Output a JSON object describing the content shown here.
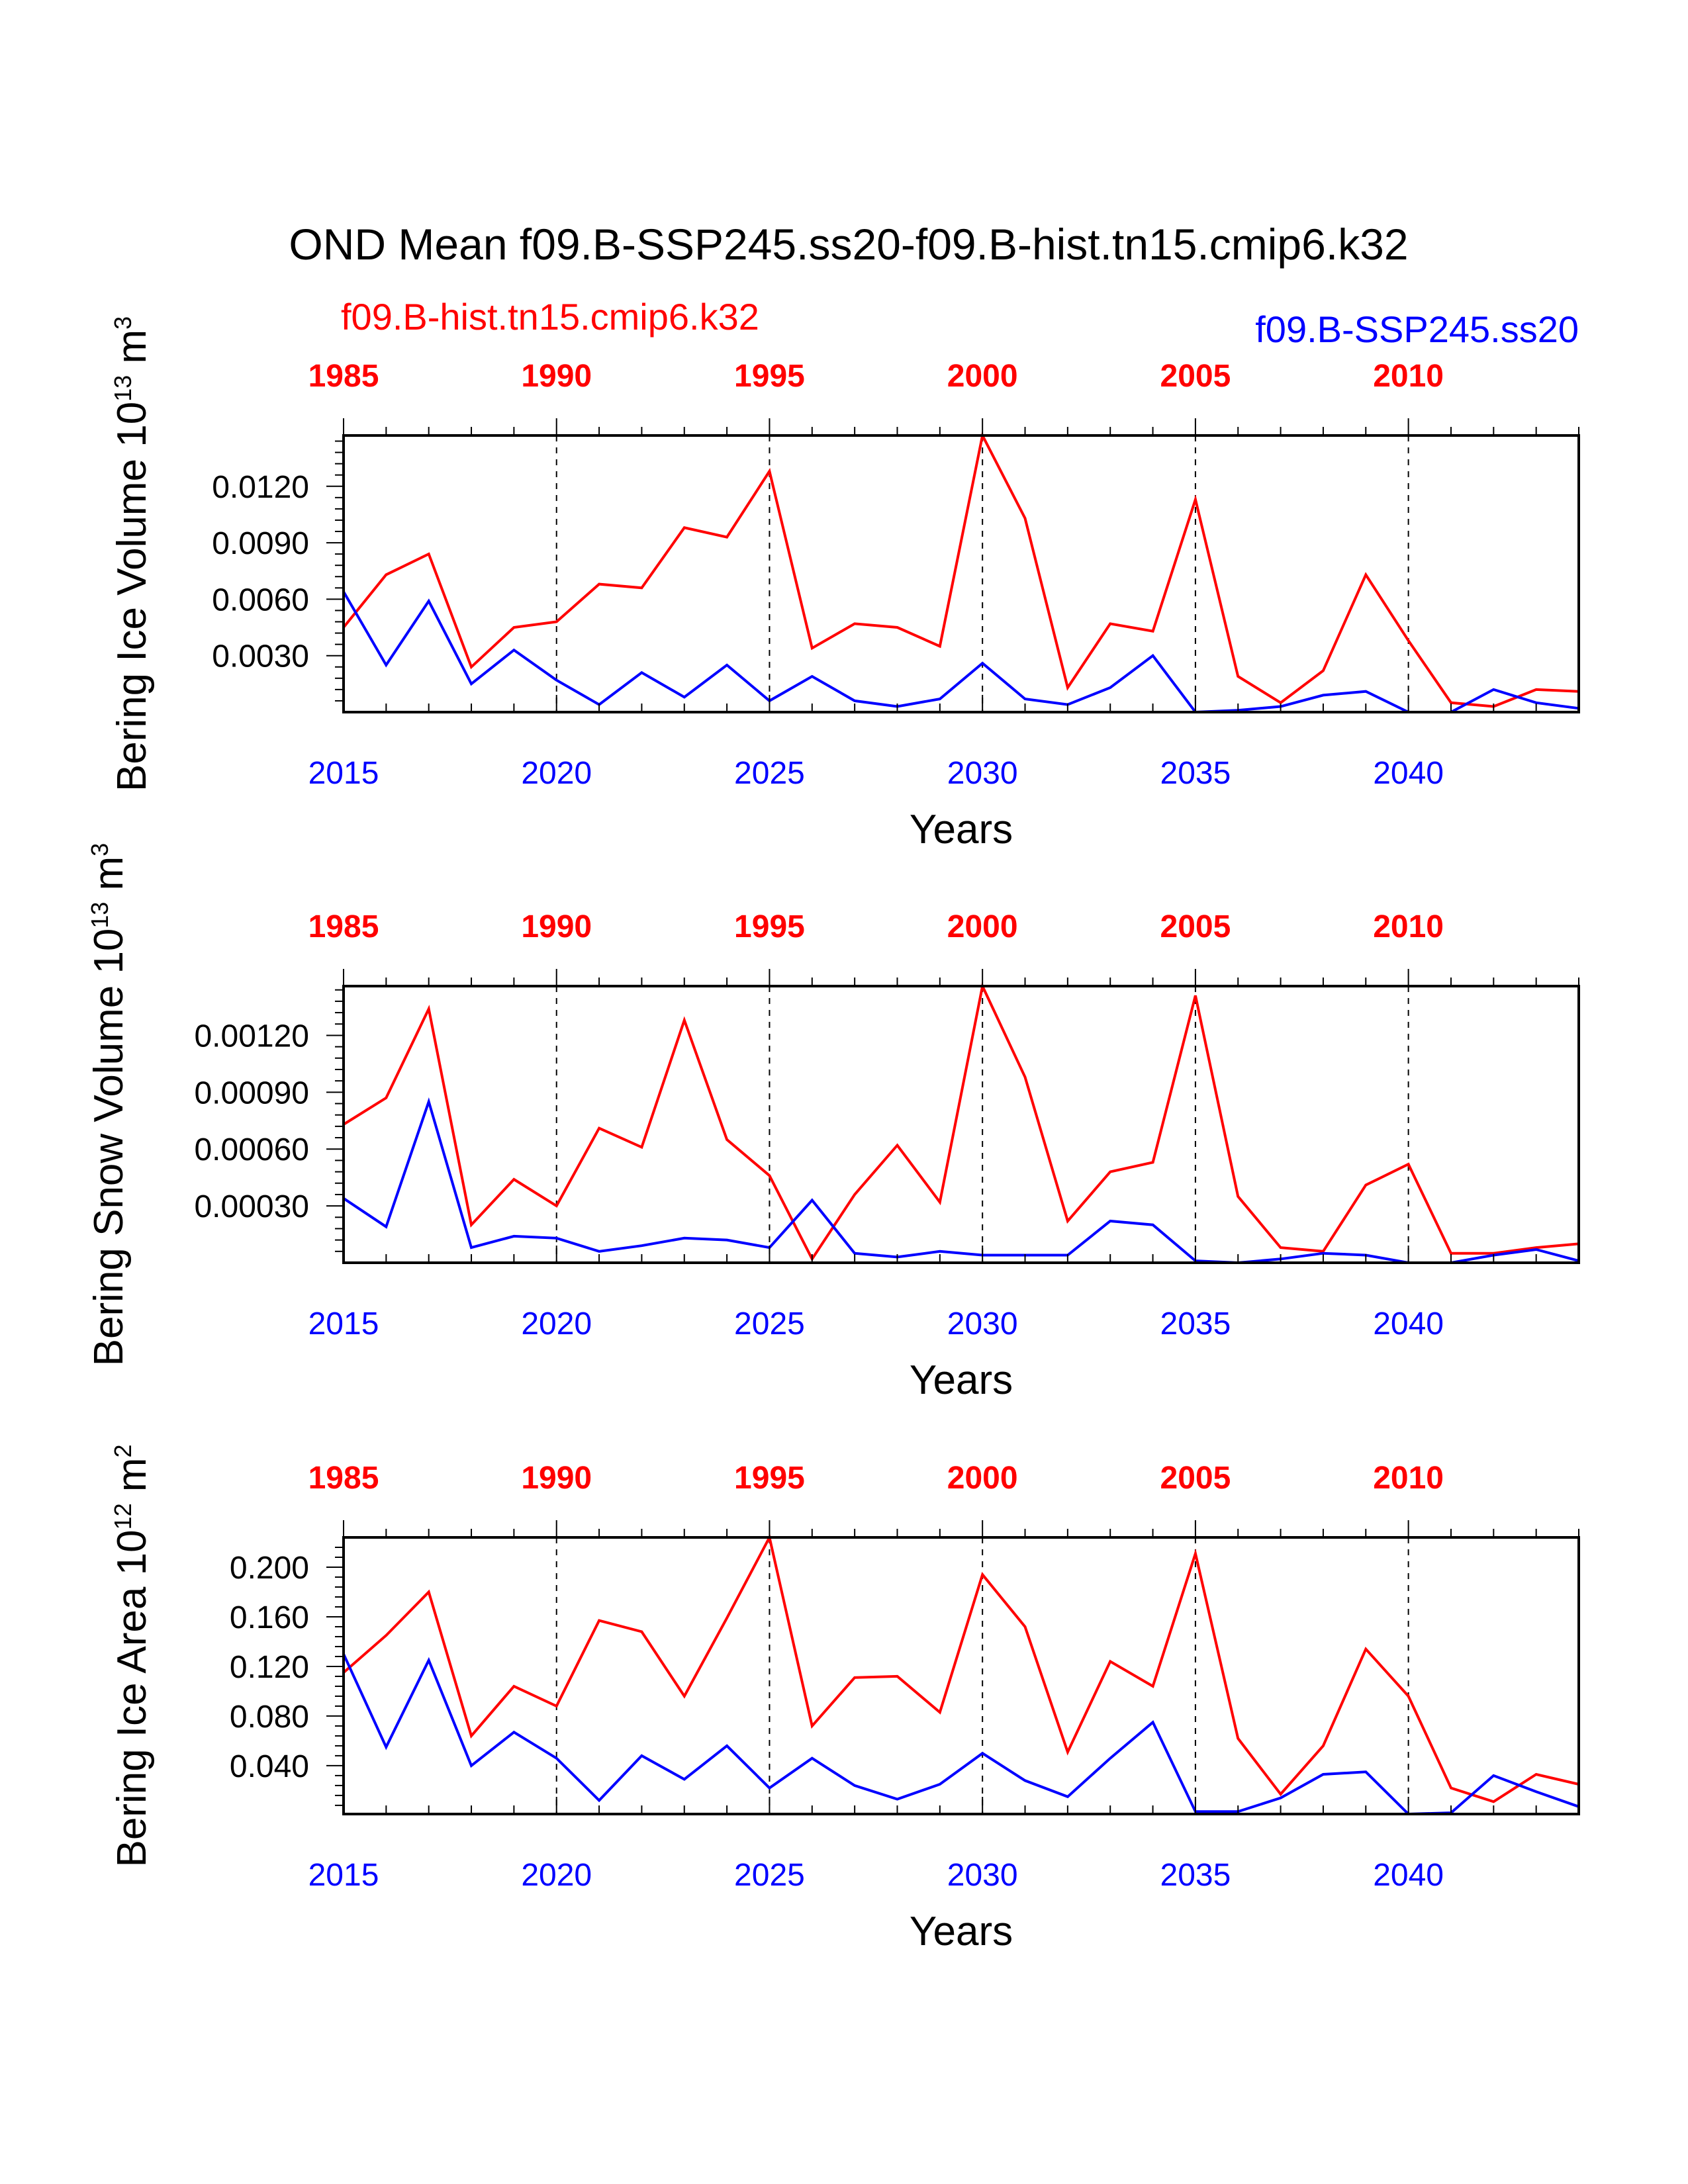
{
  "title": "OND Mean f09.B-SSP245.ss20-f09.B-hist.tn15.cmip6.k32",
  "legend": {
    "hist_label": "f09.B-hist.tn15.cmip6.k32",
    "ssp_label": "f09.B-SSP245.ss20"
  },
  "colors": {
    "hist": "#ff0000",
    "ssp": "#0000ff",
    "axis": "#000000"
  },
  "chart_data": [
    {
      "type": "line",
      "ylabel_main": "Bering Ice Volume 10",
      "ylabel_exp": "13",
      "ylabel_unit": " m",
      "ylabel_unit_exp": "3",
      "xlabel": "Years",
      "bottom_xlim": [
        2015,
        2044
      ],
      "top_xlim": [
        1985,
        2014
      ],
      "bottom_ticks": [
        "2015",
        "2020",
        "2025",
        "2030",
        "2035",
        "2040"
      ],
      "top_ticks": [
        "1985",
        "1990",
        "1995",
        "2000",
        "2005",
        "2010"
      ],
      "ylim": [
        0,
        0.0147
      ],
      "yticks": [
        0.003,
        0.006,
        0.009,
        0.012
      ],
      "ytick_labels": [
        "0.0030",
        "0.0060",
        "0.0090",
        "0.0120"
      ],
      "yminor_step": 0.0006,
      "grid": "dashed vertical lines at major bottom ticks",
      "x": [
        2015,
        2016,
        2017,
        2018,
        2019,
        2020,
        2021,
        2022,
        2023,
        2024,
        2025,
        2026,
        2027,
        2028,
        2029,
        2030,
        2031,
        2032,
        2033,
        2034,
        2035,
        2036,
        2037,
        2038,
        2039,
        2040,
        2041,
        2042,
        2043,
        2044
      ],
      "series": [
        {
          "color_key": "hist",
          "values": [
            0.0045,
            0.0073,
            0.0084,
            0.0024,
            0.0045,
            0.0048,
            0.0068,
            0.0066,
            0.0098,
            0.0093,
            0.0128,
            0.0034,
            0.0047,
            0.0045,
            0.0035,
            0.0147,
            0.0103,
            0.0013,
            0.0047,
            0.0043,
            0.0113,
            0.0019,
            0.0005,
            0.0022,
            0.0073,
            0.0038,
            0.0005,
            0.0003,
            0.0012,
            0.0011
          ]
        },
        {
          "color_key": "ssp",
          "values": [
            0.0064,
            0.0025,
            0.0059,
            0.0015,
            0.0033,
            0.0017,
            0.0004,
            0.0021,
            0.0008,
            0.0025,
            0.0006,
            0.0019,
            0.0006,
            0.0003,
            0.0007,
            0.0026,
            0.0007,
            0.0004,
            0.0013,
            0.003,
            0.0,
            0.0001,
            0.0003,
            0.0009,
            0.0011,
            0.0,
            0.0,
            0.0012,
            0.0005,
            0.0002
          ]
        }
      ]
    },
    {
      "type": "line",
      "ylabel_main": "Bering Snow Volume 10",
      "ylabel_exp": "13",
      "ylabel_unit": " m",
      "ylabel_unit_exp": "3",
      "xlabel": "Years",
      "bottom_xlim": [
        2015,
        2044
      ],
      "top_xlim": [
        1985,
        2014
      ],
      "bottom_ticks": [
        "2015",
        "2020",
        "2025",
        "2030",
        "2035",
        "2040"
      ],
      "top_ticks": [
        "1985",
        "1990",
        "1995",
        "2000",
        "2005",
        "2010"
      ],
      "ylim": [
        0,
        0.00146
      ],
      "yticks": [
        0.0003,
        0.0006,
        0.0009,
        0.0012
      ],
      "ytick_labels": [
        "0.00030",
        "0.00060",
        "0.00090",
        "0.00120"
      ],
      "yminor_step": 6e-05,
      "grid": "dashed vertical lines at major bottom ticks",
      "x": [
        2015,
        2016,
        2017,
        2018,
        2019,
        2020,
        2021,
        2022,
        2023,
        2024,
        2025,
        2026,
        2027,
        2028,
        2029,
        2030,
        2031,
        2032,
        2033,
        2034,
        2035,
        2036,
        2037,
        2038,
        2039,
        2040,
        2041,
        2042,
        2043,
        2044
      ],
      "series": [
        {
          "color_key": "hist",
          "values": [
            0.00073,
            0.00087,
            0.00134,
            0.0002,
            0.00044,
            0.0003,
            0.00071,
            0.00061,
            0.00128,
            0.00065,
            0.00046,
            2e-05,
            0.00036,
            0.00062,
            0.00032,
            0.00146,
            0.00098,
            0.00022,
            0.00048,
            0.00053,
            0.00141,
            0.00035,
            8e-05,
            6e-05,
            0.00041,
            0.00052,
            5e-05,
            5e-05,
            8e-05,
            0.0001
          ]
        },
        {
          "color_key": "ssp",
          "values": [
            0.00034,
            0.00019,
            0.00085,
            8e-05,
            0.00014,
            0.00013,
            6e-05,
            9e-05,
            0.00013,
            0.00012,
            8e-05,
            0.00033,
            5e-05,
            3e-05,
            6e-05,
            4e-05,
            4e-05,
            4e-05,
            0.00022,
            0.0002,
            1e-05,
            0.0,
            2e-05,
            5e-05,
            4e-05,
            0.0,
            0.0,
            4e-05,
            7e-05,
            1e-05
          ]
        }
      ]
    },
    {
      "type": "line",
      "ylabel_main": "Bering Ice Area 10",
      "ylabel_exp": "12",
      "ylabel_unit": " m",
      "ylabel_unit_exp": "2",
      "xlabel": "Years",
      "bottom_xlim": [
        2015,
        2044
      ],
      "top_xlim": [
        1985,
        2014
      ],
      "bottom_ticks": [
        "2015",
        "2020",
        "2025",
        "2030",
        "2035",
        "2040"
      ],
      "top_ticks": [
        "1985",
        "1990",
        "1995",
        "2000",
        "2005",
        "2010"
      ],
      "ylim": [
        0.001,
        0.224
      ],
      "yticks": [
        0.04,
        0.08,
        0.12,
        0.16,
        0.2
      ],
      "ytick_labels": [
        "0.040",
        "0.080",
        "0.120",
        "0.160",
        "0.200"
      ],
      "yminor_step": 0.008,
      "grid": "dashed vertical lines at major bottom ticks",
      "x": [
        2015,
        2016,
        2017,
        2018,
        2019,
        2020,
        2021,
        2022,
        2023,
        2024,
        2025,
        2026,
        2027,
        2028,
        2029,
        2030,
        2031,
        2032,
        2033,
        2034,
        2035,
        2036,
        2037,
        2038,
        2039,
        2040,
        2041,
        2042,
        2043,
        2044
      ],
      "series": [
        {
          "color_key": "hist",
          "values": [
            0.115,
            0.145,
            0.18,
            0.064,
            0.104,
            0.088,
            0.157,
            0.148,
            0.096,
            0.159,
            0.224,
            0.072,
            0.111,
            0.112,
            0.083,
            0.194,
            0.152,
            0.051,
            0.124,
            0.104,
            0.211,
            0.062,
            0.017,
            0.056,
            0.134,
            0.096,
            0.022,
            0.011,
            0.033,
            0.025
          ]
        },
        {
          "color_key": "ssp",
          "values": [
            0.13,
            0.055,
            0.125,
            0.04,
            0.067,
            0.046,
            0.012,
            0.048,
            0.029,
            0.056,
            0.022,
            0.046,
            0.024,
            0.013,
            0.025,
            0.05,
            0.028,
            0.015,
            0.046,
            0.075,
            0.003,
            0.003,
            0.014,
            0.033,
            0.035,
            0.001,
            0.002,
            0.032,
            0.019,
            0.007
          ]
        }
      ]
    }
  ]
}
